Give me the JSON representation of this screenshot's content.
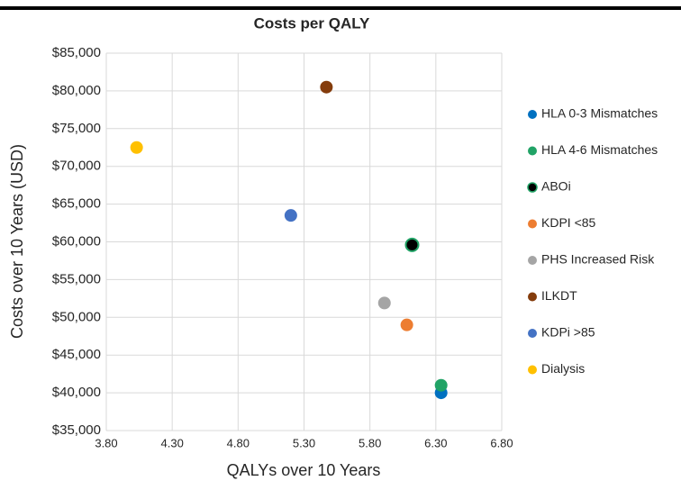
{
  "chart_data": {
    "type": "scatter",
    "title": "Costs per QALY",
    "xlabel": "QALYs over 10 Years",
    "ylabel": "Costs over 10 Years (USD)",
    "xlim": [
      3.8,
      6.8
    ],
    "xticks": [
      {
        "value": 3.8,
        "label": "3.80"
      },
      {
        "value": 4.3,
        "label": "4.30"
      },
      {
        "value": 4.8,
        "label": "4.80"
      },
      {
        "value": 5.3,
        "label": "5.30"
      },
      {
        "value": 5.8,
        "label": "5.80"
      },
      {
        "value": 6.3,
        "label": "6.30"
      },
      {
        "value": 6.8,
        "label": "6.80"
      }
    ],
    "ylim": [
      35000,
      85000
    ],
    "yticks": [
      {
        "value": 35000,
        "label": "$35,000"
      },
      {
        "value": 40000,
        "label": "$40,000"
      },
      {
        "value": 45000,
        "label": "$45,000"
      },
      {
        "value": 50000,
        "label": "$50,000"
      },
      {
        "value": 55000,
        "label": "$55,000"
      },
      {
        "value": 60000,
        "label": "$60,000"
      },
      {
        "value": 65000,
        "label": "$65,000"
      },
      {
        "value": 70000,
        "label": "$70,000"
      },
      {
        "value": 75000,
        "label": "$75,000"
      },
      {
        "value": 80000,
        "label": "$80,000"
      },
      {
        "value": 85000,
        "label": "$85,000"
      }
    ],
    "grid": true,
    "legend": "right",
    "series": [
      {
        "name": "HLA 0-3 Mismatches",
        "color": "#0070c0",
        "x": [
          6.34
        ],
        "values": [
          40000
        ]
      },
      {
        "name": "HLA 4-6 Mismatches",
        "color": "#21a366",
        "x": [
          6.34
        ],
        "values": [
          41000
        ]
      },
      {
        "name": "ABOi",
        "color": "#000000",
        "edgecolor": "#21a366",
        "x": [
          6.12
        ],
        "values": [
          59600
        ]
      },
      {
        "name": "KDPI <85",
        "color": "#ed7d31",
        "x": [
          6.08
        ],
        "values": [
          49000
        ]
      },
      {
        "name": "PHS Increased Risk",
        "color": "#a5a5a5",
        "x": [
          5.91
        ],
        "values": [
          51900
        ]
      },
      {
        "name": "ILKDT",
        "color": "#843c0c",
        "x": [
          5.47
        ],
        "values": [
          80500
        ]
      },
      {
        "name": "KDPi >85",
        "color": "#4472c4",
        "x": [
          5.2
        ],
        "values": [
          63500
        ]
      },
      {
        "name": "Dialysis",
        "color": "#ffc000",
        "x": [
          4.03
        ],
        "values": [
          72500
        ]
      }
    ]
  }
}
